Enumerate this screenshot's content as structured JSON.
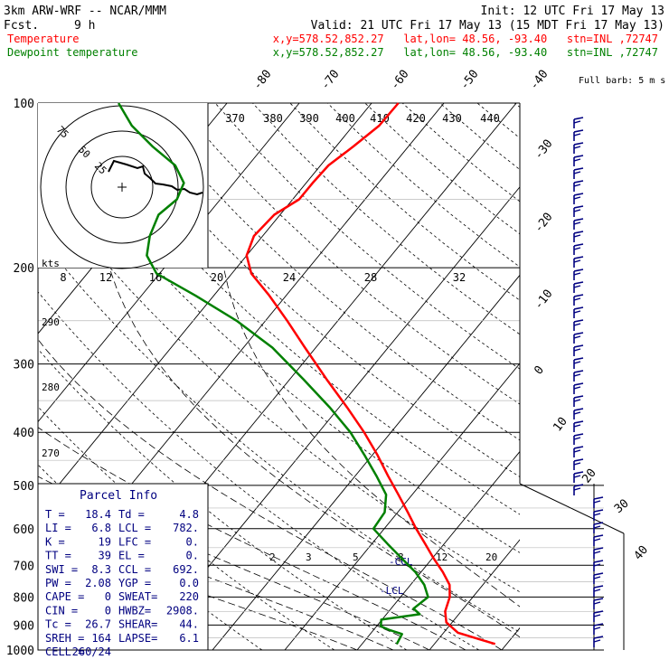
{
  "header": {
    "model": "3km ARW-WRF -- NCAR/MMM",
    "init": "Init: 12 UTC Fri 17 May 13",
    "fcst_label": "Fcst.",
    "fcst_value": "9 h",
    "valid": "Valid: 21 UTC Fri 17 May 13 (15 MDT Fri 17 May 13)",
    "temp_label": "Temperature",
    "temp_info": "x,y=578.52,852.27   lat,lon= 48.56, -93.40   stn=INL ,72747",
    "dew_label": "Dewpoint temperature",
    "dew_info": "x,y=578.52,852.27   lat,lon= 48.56, -93.40   stn=INL ,72747"
  },
  "colors": {
    "temperature": "#ff0000",
    "dewpoint": "#008000",
    "text": "#000080",
    "black": "#000000"
  },
  "chart_data": {
    "type": "line",
    "title": "3km ARW-WRF -- NCAR/MMM",
    "skewt": {
      "pressure_ticks": [
        "100",
        "200",
        "300",
        "400",
        "500",
        "600",
        "700",
        "800",
        "900",
        "1000"
      ],
      "pressure_levels": [
        100,
        200,
        300,
        400,
        500,
        600,
        700,
        800,
        900,
        1000
      ],
      "temperature_labels": [
        "-80",
        "-70",
        "-60",
        "-50",
        "-40",
        "-30",
        "-20",
        "-10",
        "0",
        "10",
        "20",
        "30",
        "40"
      ],
      "temperature_values": [
        -80,
        -70,
        -60,
        -50,
        -40,
        -30,
        -20,
        -10,
        0,
        10,
        20,
        30,
        40
      ],
      "mixing_ratio_labels": [
        "2",
        "3",
        "5",
        "8",
        "12",
        "20"
      ],
      "theta_labels": [
        "290",
        "280",
        "270"
      ],
      "series": [
        {
          "name": "Temperature",
          "color": "#ff0000",
          "points": [
            {
              "p": 975,
              "t": 18.4
            },
            {
              "p": 955,
              "t": 15.6
            },
            {
              "p": 930,
              "t": 12.0
            },
            {
              "p": 890,
              "t": 9.2
            },
            {
              "p": 850,
              "t": 7.8
            },
            {
              "p": 800,
              "t": 6.8
            },
            {
              "p": 760,
              "t": 5.4
            },
            {
              "p": 720,
              "t": 3.0
            },
            {
              "p": 680,
              "t": 0.2
            },
            {
              "p": 640,
              "t": -2.6
            },
            {
              "p": 600,
              "t": -5.6
            },
            {
              "p": 560,
              "t": -8.6
            },
            {
              "p": 520,
              "t": -11.9
            },
            {
              "p": 480,
              "t": -15.5
            },
            {
              "p": 440,
              "t": -19.3
            },
            {
              "p": 400,
              "t": -23.7
            },
            {
              "p": 360,
              "t": -28.9
            },
            {
              "p": 320,
              "t": -34.9
            },
            {
              "p": 280,
              "t": -41.5
            },
            {
              "p": 250,
              "t": -47.0
            },
            {
              "p": 225,
              "t": -52.3
            },
            {
              "p": 205,
              "t": -57.3
            },
            {
              "p": 190,
              "t": -60.0
            },
            {
              "p": 175,
              "t": -61.2
            },
            {
              "p": 160,
              "t": -60.8
            },
            {
              "p": 150,
              "t": -59.1
            },
            {
              "p": 140,
              "t": -59.1
            },
            {
              "p": 130,
              "t": -58.9
            },
            {
              "p": 120,
              "t": -57.6
            },
            {
              "p": 110,
              "t": -56.4
            },
            {
              "p": 100,
              "t": -56.3
            }
          ]
        },
        {
          "name": "Dewpoint temperature",
          "color": "#008000",
          "points": [
            {
              "p": 975,
              "t": 4.8
            },
            {
              "p": 935,
              "t": 4.4
            },
            {
              "p": 920,
              "t": 2.3
            },
            {
              "p": 905,
              "t": 0.6
            },
            {
              "p": 880,
              "t": -0.1
            },
            {
              "p": 860,
              "t": 4.6
            },
            {
              "p": 840,
              "t": 3.1
            },
            {
              "p": 800,
              "t": 3.8
            },
            {
              "p": 760,
              "t": 1.9
            },
            {
              "p": 720,
              "t": -0.8
            },
            {
              "p": 680,
              "t": -4.2
            },
            {
              "p": 640,
              "t": -7.8
            },
            {
              "p": 600,
              "t": -11.5
            },
            {
              "p": 560,
              "t": -11.8
            },
            {
              "p": 520,
              "t": -13.6
            },
            {
              "p": 480,
              "t": -17.1
            },
            {
              "p": 440,
              "t": -21.1
            },
            {
              "p": 400,
              "t": -25.6
            },
            {
              "p": 360,
              "t": -31.3
            },
            {
              "p": 320,
              "t": -38.1
            },
            {
              "p": 280,
              "t": -46.0
            },
            {
              "p": 250,
              "t": -54.0
            },
            {
              "p": 225,
              "t": -62.5
            },
            {
              "p": 205,
              "t": -70.4
            },
            {
              "p": 190,
              "t": -73.8
            },
            {
              "p": 175,
              "t": -75.6
            },
            {
              "p": 160,
              "t": -76.8
            },
            {
              "p": 150,
              "t": -76.0
            },
            {
              "p": 140,
              "t": -76.9
            },
            {
              "p": 130,
              "t": -80.1
            },
            {
              "p": 120,
              "t": -85.4
            },
            {
              "p": 110,
              "t": -90.6
            },
            {
              "p": 100,
              "t": -95.0
            }
          ]
        }
      ],
      "lcl_labels": [
        "-CCL",
        "-LCL"
      ]
    },
    "hodograph": {
      "units": "kts",
      "ring_labels": [
        "75",
        "50",
        "25"
      ],
      "axis_labels": [
        "8",
        "12",
        "16",
        "20",
        "24",
        "28",
        "32"
      ],
      "theta_labels": [
        "370",
        "380",
        "390",
        "400",
        "410",
        "420",
        "430",
        "440"
      ],
      "temp_axis_extra": "30"
    },
    "wind_barb_label": "Full barb: 5 m s",
    "thickness_label": "40"
  },
  "parcel_info": {
    "title": "Parcel Info",
    "rows": [
      [
        "T  =",
        "18.4",
        "Td =",
        "4.8"
      ],
      [
        "LI =",
        "6.8",
        "LCL =",
        "782."
      ],
      [
        "K  =",
        "19",
        "LFC =",
        "0."
      ],
      [
        "TT =",
        "39",
        "EL  =",
        "0."
      ],
      [
        "SWI =",
        "8.3",
        "CCL =",
        "692."
      ],
      [
        "PW =",
        "2.08",
        "YGP =",
        "0.0"
      ],
      [
        "CAPE =",
        "0",
        "SWEAT=",
        "220"
      ],
      [
        "CIN =",
        "0",
        "HWBZ= ",
        "2908."
      ],
      [
        "Tc =",
        "26.7",
        "SHEAR=",
        "44."
      ],
      [
        "SREH =",
        "164",
        "LAPSE=",
        "6.1"
      ],
      [
        "CELL =",
        "260/24",
        "",
        ""
      ]
    ]
  }
}
